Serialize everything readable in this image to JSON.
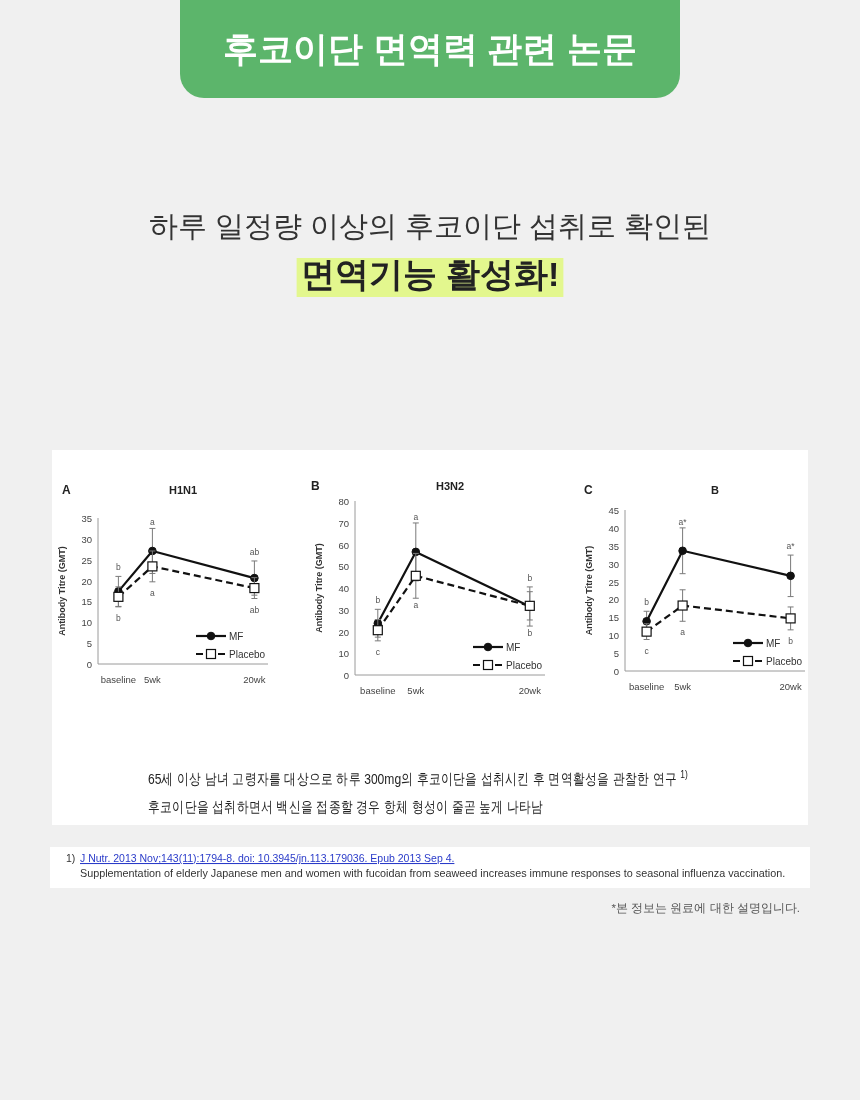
{
  "chart_data": [
    {
      "type": "other",
      "title": "후코이단 면역력 관련 논문",
      "subtitle": "하루 일정량 이상의 후코이단 섭취로 확인된",
      "annotations": [
        "면역기능 활성화!"
      ]
    },
    {
      "type": "line",
      "title": "H1N1",
      "ylabel": "Antibody Titre (GMT)",
      "x": [
        0,
        5,
        20
      ],
      "xlim": [
        -3,
        22
      ],
      "xticks": [
        {
          "value": 0,
          "label": "baseline"
        },
        {
          "value": 5,
          "label": "5wk"
        },
        {
          "value": 20,
          "label": "20wk"
        }
      ],
      "ylim": [
        0,
        35
      ],
      "yticks": [
        0,
        5,
        10,
        15,
        20,
        25,
        30,
        35
      ],
      "legend": "bottom right",
      "series": [
        {
          "name": "MF",
          "color": "#111111",
          "marker": "circle",
          "line_style": "solid",
          "values": [
            17.4,
            27.1,
            20.6
          ],
          "errors": [
            3.6,
            5.4,
            4.1
          ]
        },
        {
          "name": "Placebo",
          "color": "#111111",
          "marker": "square",
          "line_style": "dashed",
          "values": [
            16.1,
            23.4,
            18.2
          ],
          "errors": [
            2.4,
            3.7,
            2.5
          ]
        }
      ],
      "annotations": [
        "A",
        {
          "text": "b",
          "x": 0,
          "y": 17.4
        },
        {
          "text": "b",
          "x": 0,
          "y": 16.1
        },
        {
          "text": "a",
          "x": 5,
          "y": 32.5
        },
        {
          "text": "a",
          "x": 5,
          "y": 23.4
        },
        {
          "text": "ab",
          "x": 20,
          "y": 20.6
        },
        {
          "text": "ab",
          "x": 20,
          "y": 18.2
        }
      ]
    },
    {
      "type": "line",
      "title": "H3N2",
      "ylabel": "Antibody Titre (GMT)",
      "x": [
        0,
        5,
        20
      ],
      "xlim": [
        -3,
        22
      ],
      "xticks": [
        {
          "value": 0,
          "label": "baseline"
        },
        {
          "value": 5,
          "label": "5wk"
        },
        {
          "value": 20,
          "label": "20wk"
        }
      ],
      "ylim": [
        0,
        80
      ],
      "yticks": [
        0,
        10,
        20,
        30,
        40,
        50,
        60,
        70,
        80
      ],
      "legend": "bottom right",
      "series": [
        {
          "name": "MF",
          "color": "#111111",
          "marker": "circle",
          "line_style": "solid",
          "values": [
            23.8,
            56.6,
            31.5
          ],
          "errors": [
            6.4,
            13.3,
            9.0
          ]
        },
        {
          "name": "Placebo",
          "color": "#111111",
          "marker": "square",
          "line_style": "dashed",
          "values": [
            20.6,
            45.6,
            31.8
          ],
          "errors": [
            4.9,
            10.3,
            6.5
          ]
        }
      ],
      "annotations": [
        "B",
        {
          "text": "b",
          "x": 0,
          "y": 23.8
        },
        {
          "text": "c",
          "x": 0,
          "y": 20.6
        },
        {
          "text": "a",
          "x": 5,
          "y": 69.9
        },
        {
          "text": "a",
          "x": 5,
          "y": 35.3
        },
        {
          "text": "b",
          "x": 20,
          "y": 31.5
        },
        {
          "text": "b",
          "x": 20,
          "y": 22.5
        }
      ]
    },
    {
      "type": "line",
      "title": "B",
      "ylabel": "Antibody Titre (GMT)",
      "x": [
        0,
        5,
        20
      ],
      "xlim": [
        -3,
        22
      ],
      "xticks": [
        {
          "value": 0,
          "label": "baseline"
        },
        {
          "value": 5,
          "label": "5wk"
        },
        {
          "value": 20,
          "label": "20wk"
        }
      ],
      "ylim": [
        0,
        45
      ],
      "yticks": [
        0,
        5,
        10,
        15,
        20,
        25,
        30,
        35,
        40,
        45
      ],
      "legend": "bottom right",
      "series": [
        {
          "name": "MF",
          "color": "#111111",
          "marker": "circle",
          "line_style": "solid",
          "values": [
            13.9,
            33.6,
            26.6
          ],
          "errors": [
            2.8,
            6.4,
            5.8
          ]
        },
        {
          "name": "Placebo",
          "color": "#111111",
          "marker": "square",
          "line_style": "dashed",
          "values": [
            11.0,
            18.3,
            14.7
          ],
          "errors": [
            2.2,
            4.4,
            3.2
          ]
        }
      ],
      "annotations": [
        "C",
        {
          "text": "b",
          "x": 0,
          "y": 13.9
        },
        {
          "text": "c",
          "x": 0,
          "y": 11.0
        },
        {
          "text": "a*",
          "x": 5,
          "y": 40.0
        },
        {
          "text": "a",
          "x": 5,
          "y": 18.3
        },
        {
          "text": "a*",
          "x": 20,
          "y": 26.6
        },
        {
          "text": "b",
          "x": 20,
          "y": 14.7
        }
      ]
    },
    {
      "type": "other",
      "annotations": [
        "65세 이상 남녀 고령자를 대상으로 하루 300mg의 후코이단을 섭취시킨 후 면역활성을 관찰한 연구 $^{1)}$",
        "후코이단을 섭취하면서 백신을 접종할 경우 항체 형성이 줄곧 높게 나타남",
        "1)",
        "J Nutr. 2013 Nov;143(11):1794-8. doi: 10.3945/jn.113.179036. Epub 2013 Sep 4.",
        "Supplementation of elderly Japanese men and women with fucoidan from seaweed increases immune responses to seasonal influenza vaccination.",
        "*본 정보는 원료에 대한 설명입니다."
      ]
    }
  ]
}
